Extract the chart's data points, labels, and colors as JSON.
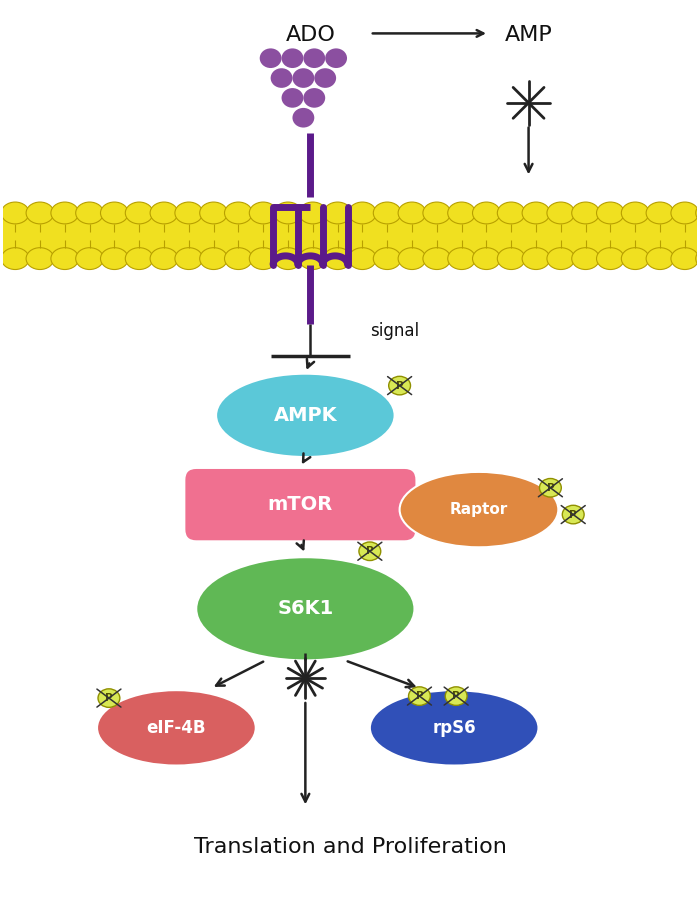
{
  "figsize": [
    7.0,
    9.18
  ],
  "dpi": 100,
  "bg_color": "#ffffff",
  "purple_color": "#5b1a8a",
  "ado_dot_color": "#8B4FA0",
  "ampk_color": "#5bc8d8",
  "mtor_color": "#f07090",
  "s6k1_color": "#60b855",
  "eif4b_color": "#d96060",
  "rps6_color": "#3050b8",
  "raptor_color": "#e08840",
  "phospho_color": "#d8e855",
  "phospho_edge": "#909000",
  "arrow_color": "#222222",
  "text_color": "#111111",
  "mem_yellow": "#f0e020",
  "mem_edge": "#b8a000",
  "title_text": "Translation and Proliferation",
  "ado_text": "ADO",
  "amp_text": "AMP",
  "signal_text": "signal"
}
